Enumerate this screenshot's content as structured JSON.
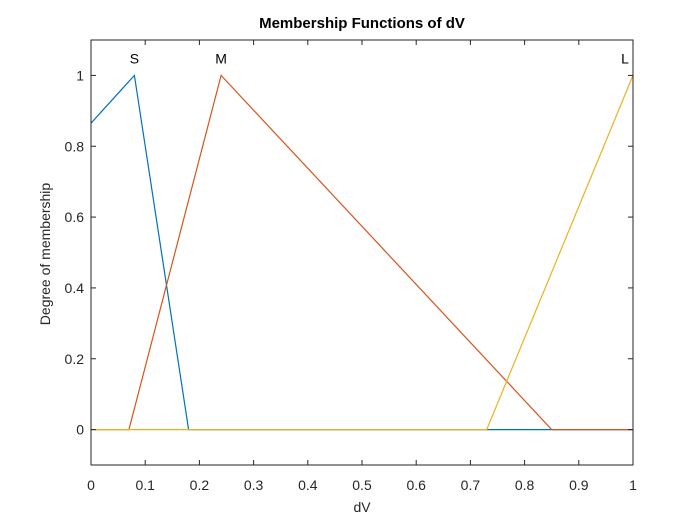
{
  "chart_data": {
    "type": "line",
    "title": "Membership Functions of dV",
    "xlabel": "dV",
    "ylabel": "Degree of membership",
    "xlim": [
      0,
      1
    ],
    "ylim": [
      -0.1,
      1.1
    ],
    "xticks": [
      "0",
      "0.1",
      "0.2",
      "0.3",
      "0.4",
      "0.5",
      "0.6",
      "0.7",
      "0.8",
      "0.9",
      "1"
    ],
    "yticks": [
      "0",
      "0.2",
      "0.4",
      "0.6",
      "0.8",
      "1"
    ],
    "grid": false,
    "series": [
      {
        "name": "S",
        "color": "#0072BD",
        "x": [
          0,
          0.08,
          0.18,
          0.73,
          0.85,
          1
        ],
        "y": [
          0.865,
          1,
          0,
          0,
          0,
          0
        ]
      },
      {
        "name": "M",
        "color": "#D95319",
        "x": [
          0,
          0.07,
          0.24,
          0.85,
          1
        ],
        "y": [
          0,
          0,
          1,
          0,
          0
        ]
      },
      {
        "name": "L",
        "color": "#EDB120",
        "x": [
          0,
          0.73,
          1
        ],
        "y": [
          0,
          0,
          1
        ]
      }
    ]
  }
}
